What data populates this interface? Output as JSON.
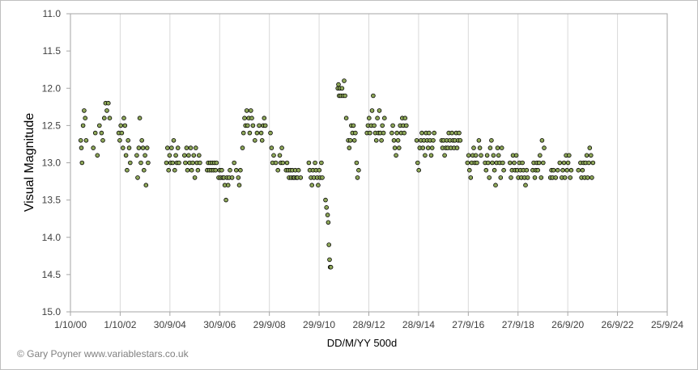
{
  "chart_data": {
    "type": "scatter",
    "title": "",
    "xlabel": "DD/M/YY  500d",
    "ylabel": "Visual Magnitude",
    "credit": "© Gary Poyner  www.variablestars.co.uk",
    "x_tick_labels": [
      "1/10/00",
      "1/10/02",
      "30/9/04",
      "30/9/06",
      "29/9/08",
      "29/9/10",
      "28/9/12",
      "28/9/14",
      "27/9/16",
      "27/9/18",
      "26/9/20",
      "26/9/22",
      "25/9/24"
    ],
    "y_ticks": [
      11.0,
      11.5,
      12.0,
      12.5,
      13.0,
      13.5,
      14.0,
      14.5,
      15.0
    ],
    "y_tick_labels": [
      "11.0",
      "11.5",
      "12.0",
      "12.5",
      "13.0",
      "13.5",
      "14.0",
      "14.5",
      "15.0"
    ],
    "xlim": [
      "1/10/00",
      "25/9/24"
    ],
    "ylim": [
      15.0,
      11.0
    ],
    "y_inverted": true,
    "grid": "vertical",
    "marker_color": "#8fa85a",
    "marker_edge": "#000000",
    "points": [
      [
        "2001-03-01",
        12.7
      ],
      [
        "2001-03-10",
        12.8
      ],
      [
        "2001-03-20",
        13.0
      ],
      [
        "2001-04-05",
        12.5
      ],
      [
        "2001-04-20",
        12.3
      ],
      [
        "2001-05-05",
        12.4
      ],
      [
        "2001-05-20",
        12.7
      ],
      [
        "2001-09-01",
        12.8
      ],
      [
        "2001-10-01",
        12.6
      ],
      [
        "2001-11-01",
        12.9
      ],
      [
        "2001-12-01",
        12.5
      ],
      [
        "2002-01-01",
        12.6
      ],
      [
        "2002-01-20",
        12.7
      ],
      [
        "2002-02-10",
        12.4
      ],
      [
        "2002-03-01",
        12.2
      ],
      [
        "2002-03-20",
        12.3
      ],
      [
        "2002-04-10",
        12.2
      ],
      [
        "2002-05-01",
        12.4
      ],
      [
        "2002-09-10",
        12.6
      ],
      [
        "2002-09-25",
        12.7
      ],
      [
        "2002-10-10",
        12.5
      ],
      [
        "2002-10-25",
        12.6
      ],
      [
        "2002-11-10",
        12.8
      ],
      [
        "2002-11-25",
        12.4
      ],
      [
        "2002-12-10",
        12.5
      ],
      [
        "2002-12-25",
        12.9
      ],
      [
        "2003-01-10",
        13.1
      ],
      [
        "2003-01-25",
        12.7
      ],
      [
        "2003-02-10",
        12.8
      ],
      [
        "2003-02-25",
        13.0
      ],
      [
        "2003-06-01",
        12.9
      ],
      [
        "2003-06-15",
        13.2
      ],
      [
        "2003-07-01",
        12.8
      ],
      [
        "2003-07-15",
        12.4
      ],
      [
        "2003-08-01",
        13.0
      ],
      [
        "2003-08-15",
        12.7
      ],
      [
        "2003-09-01",
        12.8
      ],
      [
        "2003-09-15",
        13.1
      ],
      [
        "2003-10-01",
        12.9
      ],
      [
        "2003-10-15",
        13.3
      ],
      [
        "2003-11-01",
        12.8
      ],
      [
        "2003-11-15",
        13.0
      ],
      [
        "2004-08-10",
        13.0
      ],
      [
        "2004-08-25",
        12.8
      ],
      [
        "2004-09-10",
        13.1
      ],
      [
        "2004-09-25",
        12.9
      ],
      [
        "2004-10-10",
        13.0
      ],
      [
        "2004-10-25",
        12.8
      ],
      [
        "2004-11-10",
        13.0
      ],
      [
        "2004-11-25",
        12.7
      ],
      [
        "2004-12-10",
        13.1
      ],
      [
        "2004-12-25",
        12.9
      ],
      [
        "2005-01-10",
        13.0
      ],
      [
        "2005-01-25",
        12.8
      ],
      [
        "2005-02-10",
        13.0
      ],
      [
        "2005-05-01",
        12.9
      ],
      [
        "2005-05-15",
        13.0
      ],
      [
        "2005-06-01",
        12.8
      ],
      [
        "2005-06-15",
        13.1
      ],
      [
        "2005-07-01",
        12.9
      ],
      [
        "2005-07-15",
        13.0
      ],
      [
        "2005-08-01",
        12.8
      ],
      [
        "2005-08-15",
        13.1
      ],
      [
        "2005-09-01",
        13.0
      ],
      [
        "2005-09-15",
        12.9
      ],
      [
        "2005-10-01",
        13.2
      ],
      [
        "2005-10-15",
        12.8
      ],
      [
        "2005-11-01",
        13.0
      ],
      [
        "2005-11-15",
        13.1
      ],
      [
        "2005-12-01",
        12.9
      ],
      [
        "2005-12-15",
        13.0
      ],
      [
        "2006-04-01",
        13.1
      ],
      [
        "2006-04-15",
        13.0
      ],
      [
        "2006-05-01",
        13.1
      ],
      [
        "2006-05-15",
        13.0
      ],
      [
        "2006-06-01",
        13.1
      ],
      [
        "2006-06-15",
        13.0
      ],
      [
        "2006-07-01",
        13.1
      ],
      [
        "2006-07-15",
        13.0
      ],
      [
        "2006-08-01",
        13.1
      ],
      [
        "2006-08-15",
        13.0
      ],
      [
        "2006-09-15",
        13.2
      ],
      [
        "2006-10-01",
        13.1
      ],
      [
        "2006-10-15",
        13.2
      ],
      [
        "2006-11-01",
        13.1
      ],
      [
        "2006-11-15",
        13.2
      ],
      [
        "2006-12-01",
        13.2
      ],
      [
        "2006-12-15",
        13.3
      ],
      [
        "2007-01-01",
        13.5
      ],
      [
        "2007-01-15",
        13.2
      ],
      [
        "2007-02-01",
        13.3
      ],
      [
        "2007-02-15",
        13.2
      ],
      [
        "2007-03-01",
        13.1
      ],
      [
        "2007-04-01",
        13.2
      ],
      [
        "2007-05-01",
        13.0
      ],
      [
        "2007-06-01",
        13.1
      ],
      [
        "2007-07-01",
        13.2
      ],
      [
        "2007-07-15",
        13.3
      ],
      [
        "2007-08-01",
        13.1
      ],
      [
        "2007-09-01",
        12.8
      ],
      [
        "2007-09-15",
        12.6
      ],
      [
        "2007-10-01",
        12.4
      ],
      [
        "2007-10-15",
        12.5
      ],
      [
        "2007-11-01",
        12.3
      ],
      [
        "2007-11-15",
        12.5
      ],
      [
        "2007-12-01",
        12.4
      ],
      [
        "2007-12-15",
        12.6
      ],
      [
        "2008-01-01",
        12.3
      ],
      [
        "2008-01-15",
        12.4
      ],
      [
        "2008-02-01",
        12.5
      ],
      [
        "2008-03-01",
        12.7
      ],
      [
        "2008-04-01",
        12.6
      ],
      [
        "2008-05-01",
        12.5
      ],
      [
        "2008-06-01",
        12.6
      ],
      [
        "2008-06-15",
        12.7
      ],
      [
        "2008-07-01",
        12.5
      ],
      [
        "2008-07-15",
        12.4
      ],
      [
        "2008-08-01",
        12.5
      ],
      [
        "2008-10-15",
        12.6
      ],
      [
        "2008-11-01",
        12.8
      ],
      [
        "2008-11-15",
        13.0
      ],
      [
        "2008-12-01",
        12.9
      ],
      [
        "2009-01-01",
        13.0
      ],
      [
        "2009-02-01",
        13.1
      ],
      [
        "2009-03-01",
        12.9
      ],
      [
        "2009-03-15",
        13.0
      ],
      [
        "2009-04-01",
        12.8
      ],
      [
        "2009-04-15",
        13.0
      ],
      [
        "2009-06-01",
        13.1
      ],
      [
        "2009-06-15",
        13.0
      ],
      [
        "2009-07-01",
        13.1
      ],
      [
        "2009-07-15",
        13.2
      ],
      [
        "2009-08-01",
        13.1
      ],
      [
        "2009-08-15",
        13.2
      ],
      [
        "2009-09-01",
        13.1
      ],
      [
        "2009-09-15",
        13.2
      ],
      [
        "2009-10-01",
        13.2
      ],
      [
        "2009-10-15",
        13.1
      ],
      [
        "2009-11-01",
        13.2
      ],
      [
        "2009-11-15",
        13.2
      ],
      [
        "2009-12-01",
        13.1
      ],
      [
        "2010-01-01",
        13.2
      ],
      [
        "2010-05-01",
        13.0
      ],
      [
        "2010-05-15",
        13.1
      ],
      [
        "2010-06-01",
        13.2
      ],
      [
        "2010-06-15",
        13.3
      ],
      [
        "2010-07-01",
        13.1
      ],
      [
        "2010-07-15",
        13.2
      ],
      [
        "2010-08-01",
        13.0
      ],
      [
        "2010-08-15",
        13.1
      ],
      [
        "2010-09-01",
        13.2
      ],
      [
        "2010-09-15",
        13.3
      ],
      [
        "2010-10-01",
        13.1
      ],
      [
        "2010-10-15",
        13.2
      ],
      [
        "2010-11-01",
        13.0
      ],
      [
        "2010-11-15",
        13.2
      ],
      [
        "2011-01-01",
        13.5
      ],
      [
        "2011-01-15",
        13.6
      ],
      [
        "2011-02-01",
        13.7
      ],
      [
        "2011-02-10",
        13.8
      ],
      [
        "2011-02-20",
        14.1
      ],
      [
        "2011-03-01",
        14.3
      ],
      [
        "2011-03-10",
        14.4
      ],
      [
        "2011-03-20",
        14.4
      ],
      [
        "2011-07-01",
        12.0
      ],
      [
        "2011-07-10",
        11.95
      ],
      [
        "2011-07-20",
        12.1
      ],
      [
        "2011-08-01",
        12.0
      ],
      [
        "2011-08-15",
        12.1
      ],
      [
        "2011-09-01",
        12.0
      ],
      [
        "2011-09-15",
        12.1
      ],
      [
        "2011-10-01",
        11.9
      ],
      [
        "2011-10-15",
        12.1
      ],
      [
        "2011-11-01",
        12.4
      ],
      [
        "2011-12-01",
        12.7
      ],
      [
        "2011-12-15",
        12.8
      ],
      [
        "2012-01-01",
        12.7
      ],
      [
        "2012-01-15",
        12.5
      ],
      [
        "2012-02-01",
        12.6
      ],
      [
        "2012-02-15",
        12.5
      ],
      [
        "2012-03-01",
        12.7
      ],
      [
        "2012-03-15",
        12.6
      ],
      [
        "2012-04-01",
        13.0
      ],
      [
        "2012-04-15",
        13.2
      ],
      [
        "2012-05-01",
        13.1
      ],
      [
        "2012-09-01",
        12.6
      ],
      [
        "2012-09-15",
        12.5
      ],
      [
        "2012-10-01",
        12.4
      ],
      [
        "2012-10-15",
        12.6
      ],
      [
        "2012-11-01",
        12.5
      ],
      [
        "2012-11-15",
        12.3
      ],
      [
        "2012-12-01",
        12.1
      ],
      [
        "2012-12-15",
        12.5
      ],
      [
        "2013-01-01",
        12.6
      ],
      [
        "2013-01-15",
        12.7
      ],
      [
        "2013-02-01",
        12.4
      ],
      [
        "2013-02-15",
        12.6
      ],
      [
        "2013-03-01",
        12.3
      ],
      [
        "2013-03-15",
        12.6
      ],
      [
        "2013-04-01",
        12.7
      ],
      [
        "2013-04-15",
        12.5
      ],
      [
        "2013-05-01",
        12.6
      ],
      [
        "2013-05-15",
        12.4
      ],
      [
        "2013-09-01",
        12.6
      ],
      [
        "2013-09-15",
        12.5
      ],
      [
        "2013-10-01",
        12.7
      ],
      [
        "2013-10-15",
        12.8
      ],
      [
        "2013-11-01",
        12.9
      ],
      [
        "2013-11-15",
        12.6
      ],
      [
        "2013-12-01",
        12.7
      ],
      [
        "2013-12-15",
        12.8
      ],
      [
        "2014-01-01",
        12.5
      ],
      [
        "2014-01-15",
        12.6
      ],
      [
        "2014-02-01",
        12.4
      ],
      [
        "2014-02-15",
        12.5
      ],
      [
        "2014-03-01",
        12.6
      ],
      [
        "2014-03-15",
        12.4
      ],
      [
        "2014-04-01",
        12.5
      ],
      [
        "2014-09-01",
        12.7
      ],
      [
        "2014-09-15",
        13.0
      ],
      [
        "2014-10-01",
        13.1
      ],
      [
        "2014-10-15",
        12.8
      ],
      [
        "2014-11-01",
        12.7
      ],
      [
        "2014-11-15",
        12.6
      ],
      [
        "2014-12-01",
        12.8
      ],
      [
        "2014-12-15",
        12.7
      ],
      [
        "2015-01-01",
        12.9
      ],
      [
        "2015-01-15",
        12.6
      ],
      [
        "2015-02-01",
        12.7
      ],
      [
        "2015-02-15",
        12.8
      ],
      [
        "2015-03-01",
        12.6
      ],
      [
        "2015-03-15",
        12.7
      ],
      [
        "2015-04-01",
        12.9
      ],
      [
        "2015-04-15",
        12.8
      ],
      [
        "2015-05-01",
        12.7
      ],
      [
        "2015-05-15",
        12.6
      ],
      [
        "2015-09-01",
        12.7
      ],
      [
        "2015-09-15",
        12.8
      ],
      [
        "2015-10-01",
        12.7
      ],
      [
        "2015-10-15",
        12.9
      ],
      [
        "2015-11-01",
        12.8
      ],
      [
        "2015-11-15",
        12.7
      ],
      [
        "2015-12-01",
        12.8
      ],
      [
        "2015-12-15",
        12.6
      ],
      [
        "2016-01-01",
        12.7
      ],
      [
        "2016-01-15",
        12.8
      ],
      [
        "2016-02-01",
        12.6
      ],
      [
        "2016-02-15",
        12.7
      ],
      [
        "2016-03-01",
        12.8
      ],
      [
        "2016-03-15",
        12.7
      ],
      [
        "2016-04-01",
        12.6
      ],
      [
        "2016-04-15",
        12.8
      ],
      [
        "2016-05-01",
        12.7
      ],
      [
        "2016-05-15",
        12.6
      ],
      [
        "2016-06-01",
        12.7
      ],
      [
        "2016-09-15",
        13.0
      ],
      [
        "2016-10-01",
        12.9
      ],
      [
        "2016-10-15",
        13.1
      ],
      [
        "2016-11-01",
        13.2
      ],
      [
        "2016-11-15",
        13.0
      ],
      [
        "2016-12-01",
        12.9
      ],
      [
        "2016-12-15",
        12.8
      ],
      [
        "2017-01-01",
        13.0
      ],
      [
        "2017-01-15",
        12.9
      ],
      [
        "2017-02-01",
        13.0
      ],
      [
        "2017-03-01",
        12.7
      ],
      [
        "2017-03-15",
        12.8
      ],
      [
        "2017-04-01",
        12.9
      ],
      [
        "2017-06-01",
        13.0
      ],
      [
        "2017-06-15",
        13.1
      ],
      [
        "2017-07-01",
        12.9
      ],
      [
        "2017-07-15",
        13.0
      ],
      [
        "2017-08-01",
        13.2
      ],
      [
        "2017-08-15",
        12.8
      ],
      [
        "2017-09-01",
        12.7
      ],
      [
        "2017-09-15",
        13.0
      ],
      [
        "2017-10-01",
        12.9
      ],
      [
        "2017-10-15",
        13.1
      ],
      [
        "2017-11-01",
        13.3
      ],
      [
        "2017-11-15",
        13.0
      ],
      [
        "2017-12-01",
        12.8
      ],
      [
        "2017-12-15",
        12.9
      ],
      [
        "2018-01-01",
        13.0
      ],
      [
        "2018-01-15",
        13.2
      ],
      [
        "2018-02-01",
        12.8
      ],
      [
        "2018-02-15",
        13.0
      ],
      [
        "2018-03-01",
        13.1
      ],
      [
        "2018-06-01",
        13.0
      ],
      [
        "2018-06-15",
        13.2
      ],
      [
        "2018-07-01",
        13.1
      ],
      [
        "2018-07-15",
        12.9
      ],
      [
        "2018-08-01",
        13.0
      ],
      [
        "2018-08-15",
        13.1
      ],
      [
        "2018-09-01",
        12.9
      ],
      [
        "2018-09-15",
        13.1
      ],
      [
        "2018-10-01",
        13.2
      ],
      [
        "2018-10-15",
        13.0
      ],
      [
        "2018-11-01",
        13.1
      ],
      [
        "2018-11-15",
        13.2
      ],
      [
        "2018-12-01",
        13.0
      ],
      [
        "2018-12-15",
        13.1
      ],
      [
        "2019-01-01",
        13.2
      ],
      [
        "2019-01-15",
        13.3
      ],
      [
        "2019-02-01",
        13.1
      ],
      [
        "2019-02-15",
        13.2
      ],
      [
        "2019-05-01",
        13.1
      ],
      [
        "2019-05-15",
        13.0
      ],
      [
        "2019-06-01",
        13.2
      ],
      [
        "2019-06-15",
        13.1
      ],
      [
        "2019-07-01",
        13.0
      ],
      [
        "2019-07-15",
        13.1
      ],
      [
        "2019-08-01",
        13.0
      ],
      [
        "2019-08-15",
        12.9
      ],
      [
        "2019-09-01",
        13.2
      ],
      [
        "2019-09-15",
        12.7
      ],
      [
        "2019-10-01",
        13.0
      ],
      [
        "2019-10-15",
        12.8
      ],
      [
        "2020-01-15",
        13.2
      ],
      [
        "2020-02-01",
        13.1
      ],
      [
        "2020-02-15",
        13.2
      ],
      [
        "2020-03-01",
        13.1
      ],
      [
        "2020-04-01",
        13.2
      ],
      [
        "2020-05-01",
        13.1
      ],
      [
        "2020-06-01",
        13.0
      ],
      [
        "2020-07-01",
        13.2
      ],
      [
        "2020-07-15",
        13.1
      ],
      [
        "2020-08-01",
        13.0
      ],
      [
        "2020-08-15",
        13.2
      ],
      [
        "2020-09-01",
        12.9
      ],
      [
        "2020-09-15",
        13.1
      ],
      [
        "2020-10-01",
        13.0
      ],
      [
        "2020-10-15",
        12.9
      ],
      [
        "2020-11-01",
        13.2
      ],
      [
        "2020-11-15",
        13.1
      ],
      [
        "2021-03-01",
        13.1
      ],
      [
        "2021-04-01",
        13.0
      ],
      [
        "2021-04-15",
        13.2
      ],
      [
        "2021-05-01",
        13.1
      ],
      [
        "2021-05-15",
        13.0
      ],
      [
        "2021-06-01",
        13.2
      ],
      [
        "2021-06-15",
        13.0
      ],
      [
        "2021-07-01",
        12.9
      ],
      [
        "2021-07-15",
        13.2
      ],
      [
        "2021-08-01",
        13.0
      ],
      [
        "2021-08-15",
        12.8
      ],
      [
        "2021-09-01",
        12.9
      ],
      [
        "2021-09-15",
        13.2
      ],
      [
        "2021-10-01",
        13.0
      ]
    ]
  }
}
